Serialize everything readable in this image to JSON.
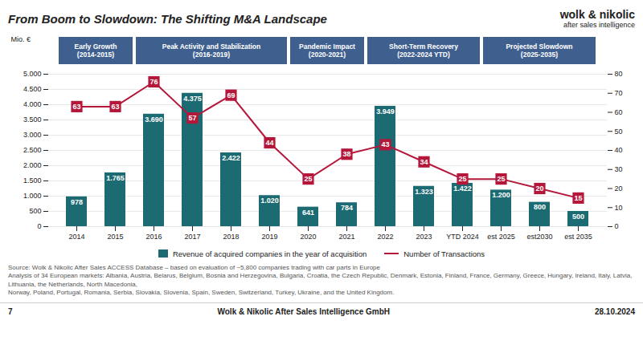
{
  "chart_data": {
    "type": "bar",
    "title": "From Boom to Slowdown: The Shifting M&A Landscape",
    "ylabel": "Mio. €",
    "categories": [
      "2014",
      "2015",
      "2016",
      "2017",
      "2018",
      "2019",
      "2020",
      "2021",
      "2022",
      "2023",
      "YTD 2024",
      "est 2025",
      "est2030",
      "est 2035"
    ],
    "series": [
      {
        "name": "Revenue of acquired companies in the year of acquisition",
        "type": "bar",
        "color": "#1d6b72",
        "values": [
          978,
          1765,
          3690,
          4375,
          2422,
          1020,
          641,
          784,
          3949,
          1323,
          1422,
          1200,
          800,
          500
        ],
        "value_labels": [
          "978",
          "1.765",
          "3.690",
          "4.375",
          "2.422",
          "1.020",
          "641",
          "784",
          "3.949",
          "1.323",
          "1.422",
          "1.200",
          "800",
          "500"
        ]
      },
      {
        "name": "Number of Transactions",
        "type": "line",
        "color": "#b5173a",
        "axis": "y2",
        "values": [
          63,
          63,
          76,
          57,
          69,
          44,
          25,
          38,
          43,
          34,
          25,
          25,
          20,
          15
        ]
      }
    ],
    "data_labels": true,
    "ylim": [
      0,
      5000
    ],
    "yticks": [
      0,
      500,
      {
        "value": 1000,
        "label": "1.000"
      },
      {
        "value": 1500,
        "label": "1.500"
      },
      {
        "value": 2000,
        "label": "2.000"
      },
      {
        "value": 2500,
        "label": "2.500"
      },
      {
        "value": 3000,
        "label": "3.000"
      },
      {
        "value": 3500,
        "label": "3.500"
      },
      {
        "value": 4000,
        "label": "4.000"
      },
      {
        "value": 4500,
        "label": "4.500"
      },
      {
        "value": 5000,
        "label": "5.000"
      }
    ],
    "y2lim": [
      0,
      80
    ],
    "y2ticks": [
      0,
      10,
      20,
      30,
      40,
      50,
      60,
      70,
      80
    ],
    "grid": true,
    "legend": "bottom",
    "phases": [
      {
        "label": "Early Growth\n(2014-2015)",
        "from": "2014",
        "to": "2015"
      },
      {
        "label": "Peak Activity and Stabilization\n(2016-2019)",
        "from": "2016",
        "to": "2019"
      },
      {
        "label": "Pandemic Impact\n(2020-2021)",
        "from": "2020",
        "to": "2021"
      },
      {
        "label": "Short-Term Recovery\n(2022-2024 YTD)",
        "from": "2022",
        "to": "YTD 2024"
      },
      {
        "label": "Projected Slowdown\n(2025-2035)",
        "from": "est 2025",
        "to": "est 2035"
      }
    ],
    "logo": [
      "wolk & nikolic",
      "after sales intelligence"
    ],
    "source": [
      "Source: Wolk & Nikolic After Sales ACCESS Database – based on evaluation of ~5,800 companies trading with car parts in Europe",
      "Analysis of 34 European markets: Albania, Austria, Belarus, Belgium, Bosnia and Herzegovina, Bulgaria, Croatia, the Czech Republic, Denmark, Estonia, Finland, France, Germany, Greece, Hungary, Ireland, Italy, Latvia, Lithuania, the Netherlands, North Macedonia,",
      "Norway, Poland, Portugal, Romania, Serbia, Slovakia, Slovenia, Spain, Sweden, Switzerland, Turkey, Ukraine, and the United Kingdom."
    ],
    "footer": [
      "7",
      "Wolk & Nikolic After Sales Intelligence GmbH",
      "28.10.2024"
    ]
  }
}
